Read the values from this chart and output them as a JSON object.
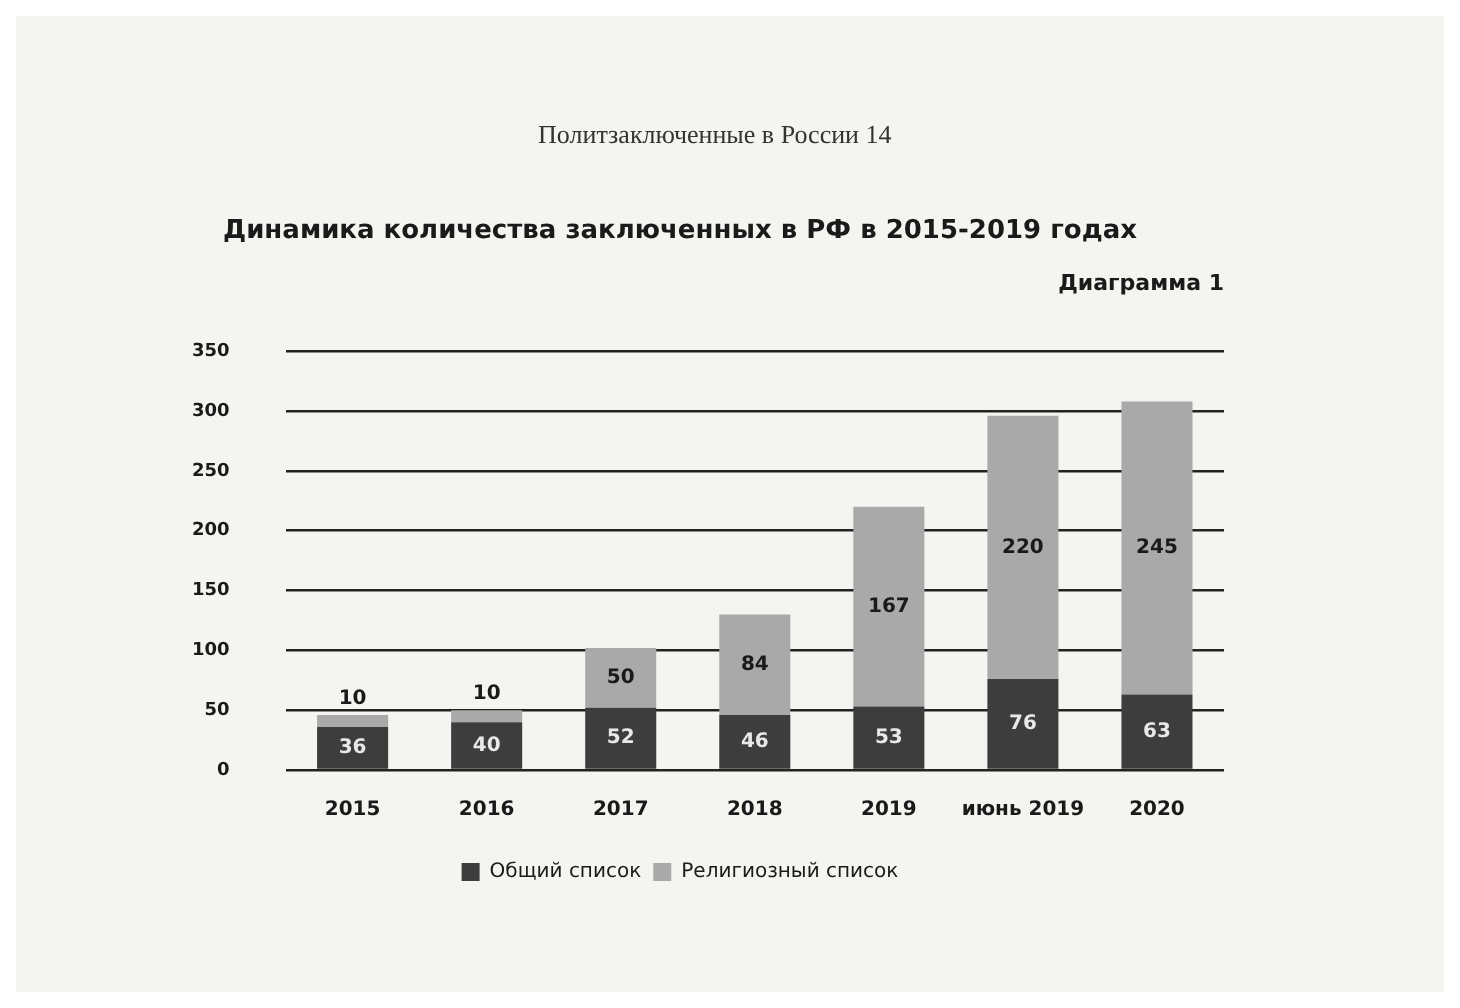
{
  "chart_data": {
    "type": "bar",
    "title": "Динамика количества заключенных в РФ в 2015-2019 годах",
    "annotations": [
      "Политзаключенные в России 14",
      "Диаграмма 1"
    ],
    "categories": [
      "2015",
      "2016",
      "2017",
      "2018",
      "2019",
      "июнь 2019",
      "2020"
    ],
    "series": [
      {
        "name": "Общий список",
        "color": "#3d3d3d",
        "values": [
          36,
          40,
          52,
          46,
          53,
          76,
          63
        ]
      },
      {
        "name": "Религиозный список",
        "color": "#a9a9a9",
        "values": [
          10,
          10,
          50,
          84,
          167,
          220,
          245
        ]
      }
    ],
    "stacked": true,
    "ylim": [
      0,
      350
    ],
    "yticks": [
      0,
      50,
      100,
      150,
      200,
      250,
      300,
      350
    ],
    "grid": "y",
    "legend": "bottom",
    "data_labels": true
  }
}
